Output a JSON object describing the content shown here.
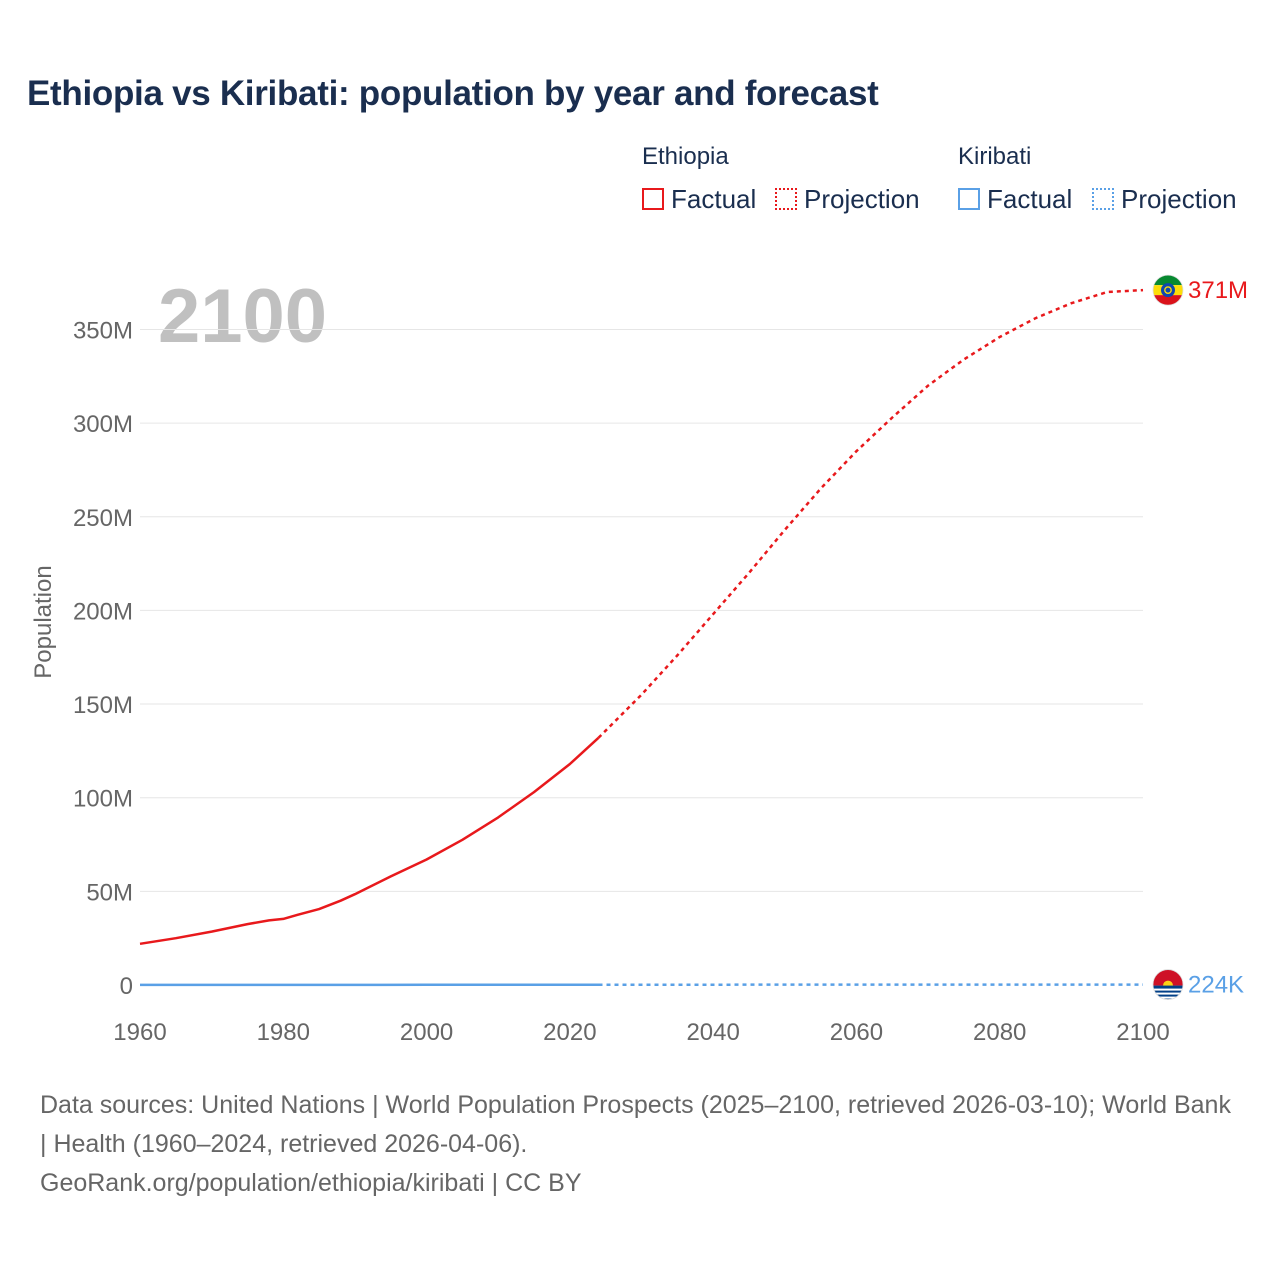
{
  "title": "Ethiopia vs Kiribati: population by year and forecast",
  "legend": {
    "groups": [
      {
        "name": "Ethiopia",
        "factual": "Factual",
        "projection": "Projection"
      },
      {
        "name": "Kiribati",
        "factual": "Factual",
        "projection": "Projection"
      }
    ]
  },
  "source": {
    "line1": "Data sources: United Nations | World Population Prospects (2025–2100, retrieved 2026-03-10); World Bank | Health (1960–2024, retrieved 2026-04-06).",
    "line2": "GeoRank.org/population/ethiopia/kiribati | CC BY"
  },
  "colors": {
    "ethiopia": "#e8191c",
    "kiribati": "#5aa0e6",
    "grid": "#e6e6e6",
    "axis_text": "#666666",
    "year_watermark": "#c0c0c0"
  },
  "chart_data": {
    "type": "line",
    "title": "Ethiopia vs Kiribati: population by year and forecast",
    "ylabel": "Population",
    "xlabel": "",
    "xlim": [
      1960,
      2100
    ],
    "ylim": [
      0,
      370000000
    ],
    "x_ticks": [
      1960,
      1980,
      2000,
      2020,
      2040,
      2060,
      2080,
      2100
    ],
    "y_ticks": [
      {
        "value": 0,
        "label": "0"
      },
      {
        "value": 50000000,
        "label": "50M"
      },
      {
        "value": 100000000,
        "label": "100M"
      },
      {
        "value": 150000000,
        "label": "150M"
      },
      {
        "value": 200000000,
        "label": "200M"
      },
      {
        "value": 250000000,
        "label": "250M"
      },
      {
        "value": 300000000,
        "label": "300M"
      },
      {
        "value": 350000000,
        "label": "350M"
      }
    ],
    "year_label": "2100",
    "series": [
      {
        "name": "Ethiopia",
        "flag": "ethiopia-flag",
        "end_label": "371M",
        "factual": {
          "x": [
            1960,
            1965,
            1970,
            1975,
            1978,
            1980,
            1982,
            1985,
            1988,
            1990,
            1995,
            2000,
            2005,
            2010,
            2015,
            2020,
            2024
          ],
          "y": [
            22000000,
            25000000,
            28500000,
            32500000,
            34500000,
            35300000,
            37500000,
            40500000,
            45000000,
            48500000,
            58000000,
            67000000,
            77500000,
            89500000,
            103000000,
            118000000,
            132000000
          ]
        },
        "projection": {
          "x": [
            2024,
            2030,
            2035,
            2040,
            2045,
            2050,
            2055,
            2060,
            2065,
            2070,
            2075,
            2080,
            2085,
            2090,
            2095,
            2100
          ],
          "y": [
            132000000,
            155000000,
            176000000,
            198000000,
            220000000,
            243000000,
            265000000,
            285000000,
            303000000,
            320000000,
            334000000,
            346000000,
            356000000,
            364000000,
            370000000,
            371000000
          ]
        }
      },
      {
        "name": "Kiribati",
        "flag": "kiribati-flag",
        "end_label": "224K",
        "factual": {
          "x": [
            1960,
            1970,
            1980,
            1990,
            2000,
            2010,
            2020,
            2024
          ],
          "y": [
            41000,
            50000,
            59000,
            72000,
            84000,
            107000,
            126000,
            133000
          ]
        },
        "projection": {
          "x": [
            2024,
            2040,
            2060,
            2080,
            2100
          ],
          "y": [
            133000,
            160000,
            190000,
            212000,
            224000
          ]
        }
      }
    ]
  }
}
